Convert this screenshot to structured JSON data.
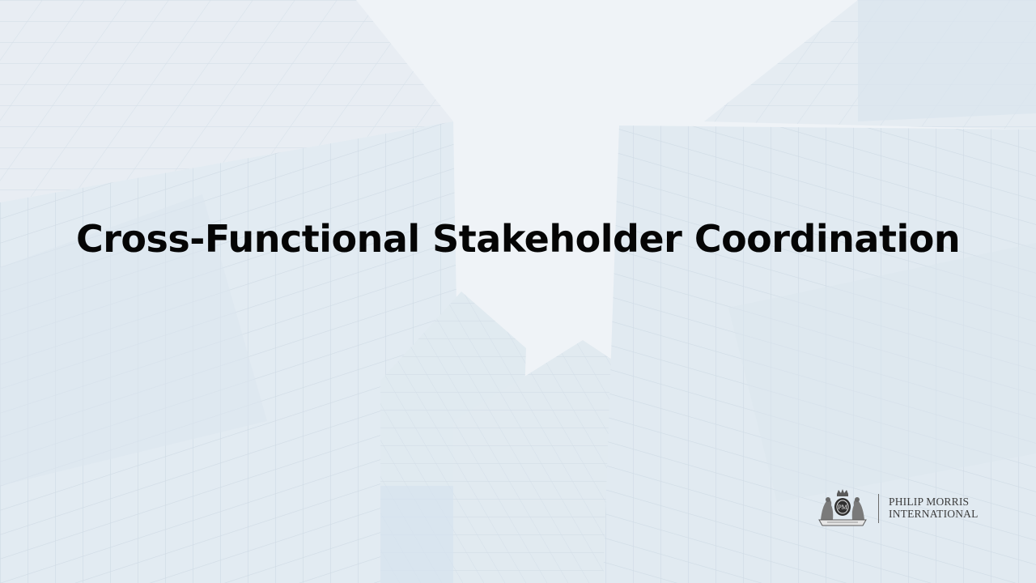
{
  "slide": {
    "title": "Cross-Functional Stakeholder Coordination"
  },
  "logo": {
    "line1": "PHILIP MORRIS",
    "line2": "INTERNATIONAL",
    "crest_icon": "pmi-crest-icon"
  },
  "colors": {
    "title": "#050505",
    "background": "#e9eef4",
    "building_glass": "#c9d9e8",
    "logo_text": "#3c3c3c"
  }
}
